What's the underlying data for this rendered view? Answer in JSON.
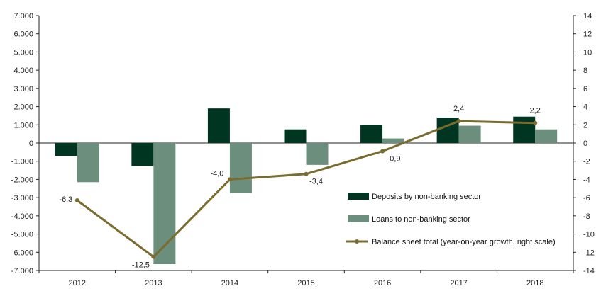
{
  "chart_data": {
    "type": "bar",
    "categories": [
      "2012",
      "2013",
      "2014",
      "2015",
      "2016",
      "2017",
      "2018"
    ],
    "series": [
      {
        "name": "Deposits by non-banking sector",
        "type": "bar",
        "axis": "left",
        "color": "#003522",
        "values": [
          -700,
          -1250,
          1900,
          750,
          1000,
          1400,
          1450
        ]
      },
      {
        "name": "Loans to non-banking sector",
        "type": "bar",
        "axis": "left",
        "color": "#6b8f7c",
        "values": [
          -2150,
          -6650,
          -2750,
          -1200,
          250,
          950,
          750
        ]
      },
      {
        "name": "Balance sheet total (year-on-year growth, right scale)",
        "type": "line",
        "axis": "right",
        "color": "#7a6b2f",
        "values": [
          -6.3,
          -12.5,
          -4.0,
          -3.4,
          -0.9,
          2.4,
          2.2
        ],
        "labels": [
          "-6,3",
          "-12,5",
          "-4,0",
          "-3,4",
          "-0,9",
          "2,4",
          "2,2"
        ]
      }
    ],
    "y_left": {
      "min": -7000,
      "max": 7000,
      "step": 1000,
      "tick_labels": [
        "7.000",
        "6.000",
        "5.000",
        "4.000",
        "3.000",
        "2.000",
        "1.000",
        "0",
        "-1.000",
        "-2.000",
        "-3.000",
        "-4.000",
        "-5.000",
        "-6.000",
        "-7.000"
      ]
    },
    "y_right": {
      "min": -14,
      "max": 14,
      "step": 2,
      "tick_labels": [
        "14",
        "12",
        "10",
        "8",
        "6",
        "4",
        "2",
        "0",
        "-2",
        "-4",
        "-6",
        "-8",
        "-10",
        "-12",
        "-14"
      ]
    },
    "grid": false,
    "legend_position": "bottom-right"
  }
}
